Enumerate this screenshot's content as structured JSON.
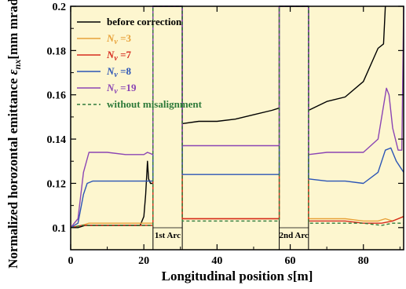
{
  "chart_data": {
    "type": "line",
    "xlabel": "Longitudinal position s[m]",
    "ylabel": "Normalized horozontal emittance εnx[mm mrad]",
    "xlim": [
      0,
      91
    ],
    "ylim": [
      0.09,
      0.2
    ],
    "xticks": [
      "0",
      "20",
      "40",
      "60",
      "80"
    ],
    "yticks": [
      "0.1",
      "0.12",
      "0.14",
      "0.16",
      "0.18",
      "0.2"
    ],
    "background_color": "#fdf6cf",
    "grid": false,
    "legend_position": "top-left",
    "regions": [
      {
        "label": "1st Arc",
        "x_start": 22.5,
        "x_end": 30.5
      },
      {
        "label": "2nd Arc",
        "x_start": 57,
        "x_end": 65
      }
    ],
    "series": [
      {
        "name": "before correction",
        "color": "#000000",
        "dash": "solid",
        "points": [
          [
            0,
            0.1
          ],
          [
            2,
            0.1
          ],
          [
            4,
            0.101
          ],
          [
            6,
            0.101
          ],
          [
            10,
            0.101
          ],
          [
            15,
            0.101
          ],
          [
            19,
            0.101
          ],
          [
            20,
            0.105
          ],
          [
            20.5,
            0.115
          ],
          [
            21,
            0.13
          ],
          [
            21.3,
            0.122
          ],
          [
            21.8,
            0.12
          ],
          [
            22.5,
            0.12
          ],
          [
            22.5,
            0.2
          ],
          [
            30.5,
            0.2
          ],
          [
            30.5,
            0.147
          ],
          [
            35,
            0.148
          ],
          [
            40,
            0.148
          ],
          [
            45,
            0.149
          ],
          [
            50,
            0.151
          ],
          [
            55,
            0.153
          ],
          [
            57,
            0.154
          ],
          [
            57,
            0.2
          ],
          [
            65,
            0.2
          ],
          [
            65,
            0.153
          ],
          [
            70,
            0.157
          ],
          [
            75,
            0.159
          ],
          [
            80,
            0.166
          ],
          [
            84,
            0.181
          ],
          [
            85.5,
            0.183
          ],
          [
            86,
            0.2
          ]
        ]
      },
      {
        "name": "Nv =3",
        "color": "#e8a23a",
        "dash": "solid",
        "points": [
          [
            0,
            0.1
          ],
          [
            3,
            0.101
          ],
          [
            5,
            0.102
          ],
          [
            10,
            0.102
          ],
          [
            15,
            0.102
          ],
          [
            20,
            0.102
          ],
          [
            22.5,
            0.102
          ],
          [
            22.5,
            0.2
          ],
          [
            30.5,
            0.2
          ],
          [
            30.5,
            0.104
          ],
          [
            40,
            0.104
          ],
          [
            50,
            0.104
          ],
          [
            57,
            0.104
          ],
          [
            57,
            0.2
          ],
          [
            65,
            0.2
          ],
          [
            65,
            0.104
          ],
          [
            70,
            0.104
          ],
          [
            75,
            0.104
          ],
          [
            80,
            0.103
          ],
          [
            84,
            0.103
          ],
          [
            86,
            0.104
          ],
          [
            88,
            0.103
          ],
          [
            91,
            0.105
          ]
        ]
      },
      {
        "name": "Nv =7",
        "color": "#d62b1e",
        "dash": "solid",
        "points": [
          [
            0,
            0.1
          ],
          [
            3,
            0.101
          ],
          [
            5,
            0.101
          ],
          [
            10,
            0.101
          ],
          [
            15,
            0.101
          ],
          [
            20,
            0.101
          ],
          [
            22.5,
            0.101
          ],
          [
            22.5,
            0.2
          ],
          [
            30.5,
            0.2
          ],
          [
            30.5,
            0.104
          ],
          [
            40,
            0.104
          ],
          [
            50,
            0.104
          ],
          [
            57,
            0.104
          ],
          [
            57,
            0.2
          ],
          [
            65,
            0.2
          ],
          [
            65,
            0.103
          ],
          [
            70,
            0.103
          ],
          [
            75,
            0.103
          ],
          [
            80,
            0.102
          ],
          [
            85,
            0.102
          ],
          [
            88,
            0.103
          ],
          [
            91,
            0.105
          ]
        ]
      },
      {
        "name": "Nv =8",
        "color": "#2c55b6",
        "dash": "solid",
        "points": [
          [
            0,
            0.1
          ],
          [
            2,
            0.102
          ],
          [
            3.5,
            0.115
          ],
          [
            4.5,
            0.12
          ],
          [
            6,
            0.121
          ],
          [
            10,
            0.121
          ],
          [
            15,
            0.121
          ],
          [
            20,
            0.121
          ],
          [
            22.5,
            0.121
          ],
          [
            22.5,
            0.2
          ],
          [
            30.5,
            0.2
          ],
          [
            30.5,
            0.124
          ],
          [
            40,
            0.124
          ],
          [
            50,
            0.124
          ],
          [
            57,
            0.124
          ],
          [
            57,
            0.2
          ],
          [
            65,
            0.2
          ],
          [
            65,
            0.122
          ],
          [
            70,
            0.121
          ],
          [
            75,
            0.121
          ],
          [
            80,
            0.12
          ],
          [
            84,
            0.125
          ],
          [
            86,
            0.135
          ],
          [
            87.5,
            0.136
          ],
          [
            89,
            0.13
          ],
          [
            91,
            0.125
          ]
        ]
      },
      {
        "name": "Nv =19",
        "color": "#8b45b4",
        "dash": "solid",
        "points": [
          [
            0,
            0.1
          ],
          [
            2,
            0.104
          ],
          [
            3.5,
            0.125
          ],
          [
            5,
            0.134
          ],
          [
            10,
            0.134
          ],
          [
            15,
            0.133
          ],
          [
            20,
            0.133
          ],
          [
            21,
            0.134
          ],
          [
            22.5,
            0.133
          ],
          [
            22.5,
            0.2
          ],
          [
            30.5,
            0.2
          ],
          [
            30.5,
            0.137
          ],
          [
            40,
            0.137
          ],
          [
            50,
            0.137
          ],
          [
            57,
            0.137
          ],
          [
            57,
            0.2
          ],
          [
            65,
            0.2
          ],
          [
            65,
            0.133
          ],
          [
            70,
            0.134
          ],
          [
            75,
            0.134
          ],
          [
            80,
            0.134
          ],
          [
            84,
            0.14
          ],
          [
            85.5,
            0.155
          ],
          [
            86.3,
            0.163
          ],
          [
            87,
            0.16
          ],
          [
            88,
            0.145
          ],
          [
            89.5,
            0.135
          ],
          [
            90.5,
            0.135
          ],
          [
            91,
            0.2
          ]
        ]
      },
      {
        "name": "without misalignment",
        "color": "#2e7a3a",
        "dash": "dashed",
        "points": [
          [
            0,
            0.1
          ],
          [
            3,
            0.101
          ],
          [
            5,
            0.101
          ],
          [
            10,
            0.101
          ],
          [
            15,
            0.101
          ],
          [
            20,
            0.101
          ],
          [
            22.5,
            0.101
          ],
          [
            22.5,
            0.2
          ],
          [
            30.5,
            0.2
          ],
          [
            30.5,
            0.103
          ],
          [
            40,
            0.103
          ],
          [
            50,
            0.103
          ],
          [
            57,
            0.103
          ],
          [
            57,
            0.2
          ],
          [
            65,
            0.2
          ],
          [
            65,
            0.102
          ],
          [
            70,
            0.102
          ],
          [
            75,
            0.102
          ],
          [
            80,
            0.102
          ],
          [
            85,
            0.101
          ],
          [
            88,
            0.102
          ],
          [
            91,
            0.102
          ]
        ]
      }
    ]
  }
}
